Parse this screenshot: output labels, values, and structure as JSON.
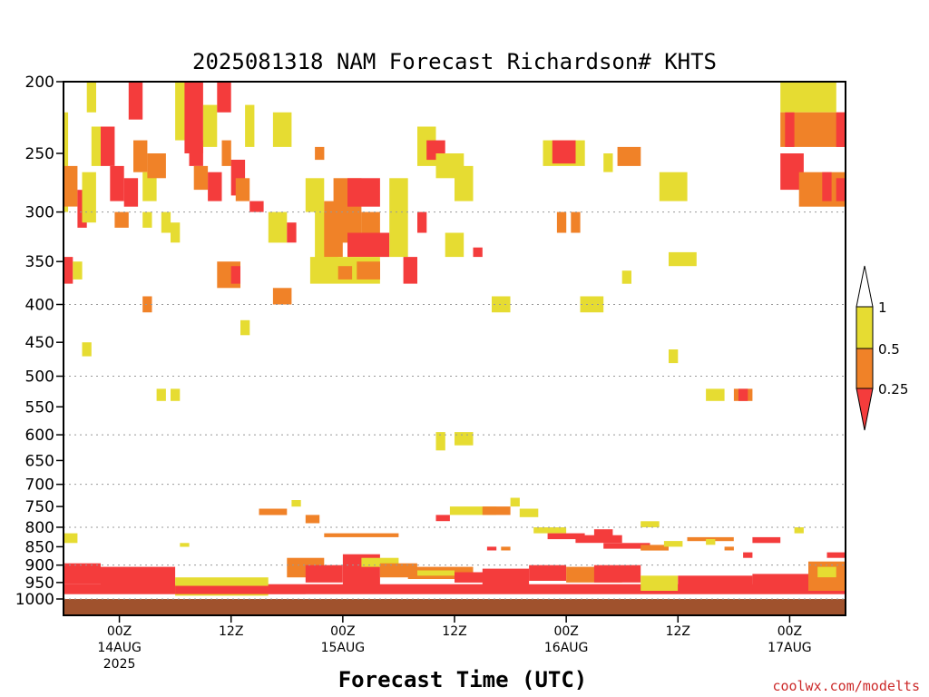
{
  "chart_data": {
    "type": "heatmap",
    "title": "2025081318 NAM Forecast Richardson# KHTS",
    "xlabel": "Forecast Time (UTC)",
    "ylabel": "",
    "credit": "coolwx.com/modelts",
    "y_scale": "pressure (inverted)",
    "ylim": [
      1000,
      200
    ],
    "y_ticks": [
      200,
      250,
      300,
      350,
      400,
      450,
      500,
      550,
      600,
      650,
      700,
      750,
      800,
      850,
      900,
      950,
      1000
    ],
    "y_gridlines": [
      300,
      400,
      500,
      600,
      700,
      800,
      900,
      1000
    ],
    "xlim_hours": [
      18,
      102
    ],
    "x_ticks": [
      {
        "hour": 24,
        "lines": [
          "00Z",
          "14AUG",
          "2025"
        ]
      },
      {
        "hour": 36,
        "lines": [
          "12Z"
        ]
      },
      {
        "hour": 48,
        "lines": [
          "00Z",
          "15AUG"
        ]
      },
      {
        "hour": 60,
        "lines": [
          "12Z"
        ]
      },
      {
        "hour": 72,
        "lines": [
          "00Z",
          "16AUG"
        ]
      },
      {
        "hour": 84,
        "lines": [
          "12Z"
        ]
      },
      {
        "hour": 96,
        "lines": [
          "00Z",
          "17AUG"
        ]
      }
    ],
    "legend": {
      "position": "right",
      "bins": [
        {
          "range": "<0.25",
          "color": "#f43c3c"
        },
        {
          "range": "0.25-0.5",
          "color": "#f08228"
        },
        {
          "range": "0.5-1",
          "color": "#e6dc32"
        },
        {
          "range": ">1",
          "color": "#ffffff"
        }
      ],
      "labels": [
        "1",
        "0.5",
        "0.25"
      ]
    },
    "colors": {
      "low": "#f43c3c",
      "mid": "#f08228",
      "high": "#e6dc32",
      "ground": "#a0522d"
    },
    "ground_level": 1000,
    "regions": [
      {
        "h0": 18.0,
        "h1": 18.5,
        "p0": 220,
        "p1": 300,
        "c": "high"
      },
      {
        "h0": 18.0,
        "h1": 19.5,
        "p0": 260,
        "p1": 295,
        "c": "mid"
      },
      {
        "h0": 19.5,
        "h1": 20.5,
        "p0": 280,
        "p1": 315,
        "c": "low"
      },
      {
        "h0": 20.0,
        "h1": 21.5,
        "p0": 265,
        "p1": 310,
        "c": "high"
      },
      {
        "h0": 20.5,
        "h1": 21.5,
        "p0": 200,
        "p1": 220,
        "c": "high"
      },
      {
        "h0": 21.0,
        "h1": 22.0,
        "p0": 230,
        "p1": 260,
        "c": "high"
      },
      {
        "h0": 22.0,
        "h1": 23.5,
        "p0": 230,
        "p1": 260,
        "c": "low"
      },
      {
        "h0": 23.0,
        "h1": 24.5,
        "p0": 260,
        "p1": 290,
        "c": "low"
      },
      {
        "h0": 23.5,
        "h1": 25.0,
        "p0": 300,
        "p1": 315,
        "c": "mid"
      },
      {
        "h0": 24.5,
        "h1": 26.0,
        "p0": 270,
        "p1": 295,
        "c": "low"
      },
      {
        "h0": 25.0,
        "h1": 26.5,
        "p0": 200,
        "p1": 225,
        "c": "low"
      },
      {
        "h0": 25.5,
        "h1": 27.0,
        "p0": 240,
        "p1": 265,
        "c": "mid"
      },
      {
        "h0": 26.5,
        "h1": 28.0,
        "p0": 265,
        "p1": 290,
        "c": "high"
      },
      {
        "h0": 27.0,
        "h1": 29.0,
        "p0": 250,
        "p1": 270,
        "c": "mid"
      },
      {
        "h0": 26.5,
        "h1": 27.5,
        "p0": 300,
        "p1": 315,
        "c": "high"
      },
      {
        "h0": 28.5,
        "h1": 29.5,
        "p0": 300,
        "p1": 320,
        "c": "high"
      },
      {
        "h0": 29.5,
        "h1": 30.5,
        "p0": 310,
        "p1": 330,
        "c": "high"
      },
      {
        "h0": 30.0,
        "h1": 31.5,
        "p0": 200,
        "p1": 240,
        "c": "high"
      },
      {
        "h0": 31.0,
        "h1": 33.0,
        "p0": 200,
        "p1": 250,
        "c": "low"
      },
      {
        "h0": 31.5,
        "h1": 33.0,
        "p0": 240,
        "p1": 260,
        "c": "low"
      },
      {
        "h0": 32.0,
        "h1": 33.5,
        "p0": 260,
        "p1": 280,
        "c": "mid"
      },
      {
        "h0": 33.0,
        "h1": 34.5,
        "p0": 215,
        "p1": 245,
        "c": "high"
      },
      {
        "h0": 33.5,
        "h1": 35.0,
        "p0": 265,
        "p1": 290,
        "c": "low"
      },
      {
        "h0": 34.5,
        "h1": 36.0,
        "p0": 200,
        "p1": 220,
        "c": "low"
      },
      {
        "h0": 35.0,
        "h1": 36.0,
        "p0": 240,
        "p1": 260,
        "c": "mid"
      },
      {
        "h0": 36.0,
        "h1": 37.5,
        "p0": 255,
        "p1": 285,
        "c": "low"
      },
      {
        "h0": 37.5,
        "h1": 38.5,
        "p0": 215,
        "p1": 245,
        "c": "high"
      },
      {
        "h0": 36.5,
        "h1": 38.0,
        "p0": 270,
        "p1": 290,
        "c": "mid"
      },
      {
        "h0": 38.0,
        "h1": 39.5,
        "p0": 290,
        "p1": 300,
        "c": "low"
      },
      {
        "h0": 40.0,
        "h1": 42.0,
        "p0": 300,
        "p1": 330,
        "c": "high"
      },
      {
        "h0": 42.0,
        "h1": 43.0,
        "p0": 310,
        "p1": 330,
        "c": "low"
      },
      {
        "h0": 40.5,
        "h1": 42.5,
        "p0": 220,
        "p1": 245,
        "c": "high"
      },
      {
        "h0": 34.5,
        "h1": 37.0,
        "p0": 350,
        "p1": 380,
        "c": "mid"
      },
      {
        "h0": 36.0,
        "h1": 37.0,
        "p0": 355,
        "p1": 375,
        "c": "low"
      },
      {
        "h0": 40.5,
        "h1": 42.5,
        "p0": 380,
        "p1": 400,
        "c": "mid"
      },
      {
        "h0": 44.0,
        "h1": 46.0,
        "p0": 270,
        "p1": 300,
        "c": "high"
      },
      {
        "h0": 45.0,
        "h1": 47.5,
        "p0": 300,
        "p1": 360,
        "c": "high"
      },
      {
        "h0": 46.0,
        "h1": 48.0,
        "p0": 290,
        "p1": 345,
        "c": "mid"
      },
      {
        "h0": 47.0,
        "h1": 50.0,
        "p0": 270,
        "p1": 330,
        "c": "mid"
      },
      {
        "h0": 48.5,
        "h1": 52.0,
        "p0": 270,
        "p1": 295,
        "c": "low"
      },
      {
        "h0": 48.5,
        "h1": 53.0,
        "p0": 320,
        "p1": 345,
        "c": "low"
      },
      {
        "h0": 50.0,
        "h1": 52.0,
        "p0": 300,
        "p1": 320,
        "c": "mid"
      },
      {
        "h0": 44.5,
        "h1": 52.0,
        "p0": 345,
        "p1": 375,
        "c": "high"
      },
      {
        "h0": 47.5,
        "h1": 49.0,
        "p0": 355,
        "p1": 370,
        "c": "mid"
      },
      {
        "h0": 49.5,
        "h1": 52.0,
        "p0": 350,
        "p1": 370,
        "c": "mid"
      },
      {
        "h0": 53.0,
        "h1": 55.0,
        "p0": 270,
        "p1": 345,
        "c": "high"
      },
      {
        "h0": 54.5,
        "h1": 56.0,
        "p0": 345,
        "p1": 375,
        "c": "low"
      },
      {
        "h0": 56.0,
        "h1": 57.0,
        "p0": 300,
        "p1": 320,
        "c": "low"
      },
      {
        "h0": 56.0,
        "h1": 58.0,
        "p0": 230,
        "p1": 260,
        "c": "high"
      },
      {
        "h0": 57.0,
        "h1": 59.0,
        "p0": 240,
        "p1": 255,
        "c": "low"
      },
      {
        "h0": 58.0,
        "h1": 61.0,
        "p0": 250,
        "p1": 270,
        "c": "high"
      },
      {
        "h0": 60.0,
        "h1": 62.0,
        "p0": 260,
        "p1": 290,
        "c": "high"
      },
      {
        "h0": 59.0,
        "h1": 61.0,
        "p0": 320,
        "p1": 345,
        "c": "high"
      },
      {
        "h0": 62.0,
        "h1": 63.0,
        "p0": 335,
        "p1": 345,
        "c": "low"
      },
      {
        "h0": 45.0,
        "h1": 46.0,
        "p0": 245,
        "p1": 255,
        "c": "mid"
      },
      {
        "h0": 64.0,
        "h1": 66.0,
        "p0": 390,
        "p1": 410,
        "c": "high"
      },
      {
        "h0": 69.5,
        "h1": 74.0,
        "p0": 240,
        "p1": 260,
        "c": "high"
      },
      {
        "h0": 70.5,
        "h1": 73.0,
        "p0": 240,
        "p1": 258,
        "c": "low"
      },
      {
        "h0": 71.0,
        "h1": 72.0,
        "p0": 300,
        "p1": 320,
        "c": "mid"
      },
      {
        "h0": 72.5,
        "h1": 73.5,
        "p0": 300,
        "p1": 320,
        "c": "mid"
      },
      {
        "h0": 73.5,
        "h1": 76.0,
        "p0": 390,
        "p1": 410,
        "c": "high"
      },
      {
        "h0": 76.0,
        "h1": 77.0,
        "p0": 250,
        "p1": 265,
        "c": "high"
      },
      {
        "h0": 77.5,
        "h1": 80.0,
        "p0": 245,
        "p1": 260,
        "c": "mid"
      },
      {
        "h0": 78.0,
        "h1": 79.0,
        "p0": 360,
        "p1": 375,
        "c": "high"
      },
      {
        "h0": 82.0,
        "h1": 85.0,
        "p0": 265,
        "p1": 290,
        "c": "high"
      },
      {
        "h0": 83.0,
        "h1": 86.0,
        "p0": 340,
        "p1": 355,
        "c": "high"
      },
      {
        "h0": 83.0,
        "h1": 84.0,
        "p0": 460,
        "p1": 480,
        "c": "high"
      },
      {
        "h0": 87.0,
        "h1": 89.0,
        "p0": 520,
        "p1": 540,
        "c": "high"
      },
      {
        "h0": 90.0,
        "h1": 92.0,
        "p0": 520,
        "p1": 540,
        "c": "mid"
      },
      {
        "h0": 90.5,
        "h1": 91.5,
        "p0": 520,
        "p1": 540,
        "c": "low"
      },
      {
        "h0": 95.0,
        "h1": 101.0,
        "p0": 200,
        "p1": 220,
        "c": "high"
      },
      {
        "h0": 95.0,
        "h1": 102.0,
        "p0": 220,
        "p1": 245,
        "c": "mid"
      },
      {
        "h0": 95.5,
        "h1": 96.5,
        "p0": 220,
        "p1": 245,
        "c": "low"
      },
      {
        "h0": 101.0,
        "h1": 102.0,
        "p0": 220,
        "p1": 245,
        "c": "low"
      },
      {
        "h0": 95.0,
        "h1": 97.5,
        "p0": 250,
        "p1": 280,
        "c": "low"
      },
      {
        "h0": 97.0,
        "h1": 102.0,
        "p0": 265,
        "p1": 295,
        "c": "mid"
      },
      {
        "h0": 99.5,
        "h1": 100.5,
        "p0": 265,
        "p1": 290,
        "c": "low"
      },
      {
        "h0": 101.0,
        "h1": 102.0,
        "p0": 270,
        "p1": 290,
        "c": "low"
      },
      {
        "h0": 18.0,
        "h1": 19.0,
        "p0": 345,
        "p1": 375,
        "c": "low"
      },
      {
        "h0": 19.0,
        "h1": 20.0,
        "p0": 350,
        "p1": 370,
        "c": "high"
      },
      {
        "h0": 20.0,
        "h1": 21.0,
        "p0": 450,
        "p1": 470,
        "c": "high"
      },
      {
        "h0": 26.5,
        "h1": 27.5,
        "p0": 390,
        "p1": 410,
        "c": "mid"
      },
      {
        "h0": 28.0,
        "h1": 29.0,
        "p0": 520,
        "p1": 540,
        "c": "high"
      },
      {
        "h0": 29.5,
        "h1": 30.5,
        "p0": 520,
        "p1": 540,
        "c": "high"
      },
      {
        "h0": 37.0,
        "h1": 38.0,
        "p0": 420,
        "p1": 440,
        "c": "high"
      },
      {
        "h0": 18.0,
        "h1": 19.5,
        "p0": 815,
        "p1": 840,
        "c": "high"
      },
      {
        "h0": 30.5,
        "h1": 31.5,
        "p0": 840,
        "p1": 850,
        "c": "high"
      },
      {
        "h0": 39.0,
        "h1": 42.0,
        "p0": 755,
        "p1": 770,
        "c": "mid"
      },
      {
        "h0": 42.5,
        "h1": 43.5,
        "p0": 735,
        "p1": 750,
        "c": "high"
      },
      {
        "h0": 44.0,
        "h1": 45.5,
        "p0": 770,
        "p1": 790,
        "c": "mid"
      },
      {
        "h0": 46.0,
        "h1": 54.0,
        "p0": 815,
        "p1": 825,
        "c": "mid"
      },
      {
        "h0": 58.0,
        "h1": 59.0,
        "p0": 595,
        "p1": 630,
        "c": "high"
      },
      {
        "h0": 60.0,
        "h1": 62.0,
        "p0": 595,
        "p1": 620,
        "c": "high"
      },
      {
        "h0": 58.0,
        "h1": 59.5,
        "p0": 770,
        "p1": 785,
        "c": "low"
      },
      {
        "h0": 59.5,
        "h1": 64.5,
        "p0": 750,
        "p1": 770,
        "c": "high"
      },
      {
        "h0": 63.0,
        "h1": 66.0,
        "p0": 750,
        "p1": 770,
        "c": "mid"
      },
      {
        "h0": 66.0,
        "h1": 67.0,
        "p0": 730,
        "p1": 750,
        "c": "high"
      },
      {
        "h0": 67.0,
        "h1": 69.0,
        "p0": 755,
        "p1": 775,
        "c": "high"
      },
      {
        "h0": 63.5,
        "h1": 64.5,
        "p0": 850,
        "p1": 860,
        "c": "low"
      },
      {
        "h0": 65.0,
        "h1": 66.0,
        "p0": 850,
        "p1": 860,
        "c": "mid"
      },
      {
        "h0": 68.5,
        "h1": 72.0,
        "p0": 800,
        "p1": 815,
        "c": "high"
      },
      {
        "h0": 70.0,
        "h1": 74.0,
        "p0": 815,
        "p1": 830,
        "c": "low"
      },
      {
        "h0": 73.0,
        "h1": 78.0,
        "p0": 820,
        "p1": 840,
        "c": "low"
      },
      {
        "h0": 75.0,
        "h1": 77.0,
        "p0": 805,
        "p1": 825,
        "c": "low"
      },
      {
        "h0": 76.0,
        "h1": 81.0,
        "p0": 840,
        "p1": 855,
        "c": "low"
      },
      {
        "h0": 80.0,
        "h1": 82.0,
        "p0": 785,
        "p1": 800,
        "c": "high"
      },
      {
        "h0": 80.0,
        "h1": 83.0,
        "p0": 845,
        "p1": 860,
        "c": "mid"
      },
      {
        "h0": 82.5,
        "h1": 84.5,
        "p0": 835,
        "p1": 850,
        "c": "high"
      },
      {
        "h0": 85.0,
        "h1": 90.0,
        "p0": 825,
        "p1": 835,
        "c": "mid"
      },
      {
        "h0": 87.0,
        "h1": 88.0,
        "p0": 830,
        "p1": 845,
        "c": "high"
      },
      {
        "h0": 89.0,
        "h1": 90.0,
        "p0": 850,
        "p1": 860,
        "c": "mid"
      },
      {
        "h0": 92.0,
        "h1": 95.0,
        "p0": 825,
        "p1": 840,
        "c": "low"
      },
      {
        "h0": 91.0,
        "h1": 92.0,
        "p0": 865,
        "p1": 880,
        "c": "low"
      },
      {
        "h0": 96.5,
        "h1": 97.5,
        "p0": 800,
        "p1": 815,
        "c": "high"
      },
      {
        "h0": 100.0,
        "h1": 102.0,
        "p0": 865,
        "p1": 880,
        "c": "low"
      },
      {
        "h0": 18.0,
        "h1": 102.0,
        "p0": 955,
        "p1": 985,
        "c": "low"
      },
      {
        "h0": 18.0,
        "h1": 22.0,
        "p0": 895,
        "p1": 955,
        "c": "low"
      },
      {
        "h0": 22.0,
        "h1": 30.0,
        "p0": 905,
        "p1": 960,
        "c": "low"
      },
      {
        "h0": 30.0,
        "h1": 40.0,
        "p0": 935,
        "p1": 990,
        "c": "high"
      },
      {
        "h0": 30.0,
        "h1": 44.0,
        "p0": 960,
        "p1": 985,
        "c": "low"
      },
      {
        "h0": 42.0,
        "h1": 46.0,
        "p0": 880,
        "p1": 935,
        "c": "mid"
      },
      {
        "h0": 44.0,
        "h1": 48.0,
        "p0": 900,
        "p1": 950,
        "c": "low"
      },
      {
        "h0": 48.0,
        "h1": 52.0,
        "p0": 870,
        "p1": 960,
        "c": "low"
      },
      {
        "h0": 50.0,
        "h1": 54.0,
        "p0": 880,
        "p1": 905,
        "c": "high"
      },
      {
        "h0": 52.0,
        "h1": 56.0,
        "p0": 895,
        "p1": 935,
        "c": "mid"
      },
      {
        "h0": 55.0,
        "h1": 62.0,
        "p0": 905,
        "p1": 940,
        "c": "mid"
      },
      {
        "h0": 56.0,
        "h1": 60.0,
        "p0": 915,
        "p1": 930,
        "c": "high"
      },
      {
        "h0": 60.0,
        "h1": 64.0,
        "p0": 920,
        "p1": 950,
        "c": "low"
      },
      {
        "h0": 63.0,
        "h1": 68.0,
        "p0": 910,
        "p1": 960,
        "c": "low"
      },
      {
        "h0": 68.0,
        "h1": 72.0,
        "p0": 900,
        "p1": 945,
        "c": "low"
      },
      {
        "h0": 72.0,
        "h1": 78.0,
        "p0": 905,
        "p1": 950,
        "c": "mid"
      },
      {
        "h0": 75.0,
        "h1": 80.0,
        "p0": 900,
        "p1": 950,
        "c": "low"
      },
      {
        "h0": 80.0,
        "h1": 84.0,
        "p0": 930,
        "p1": 975,
        "c": "high"
      },
      {
        "h0": 84.0,
        "h1": 92.0,
        "p0": 930,
        "p1": 975,
        "c": "low"
      },
      {
        "h0": 92.0,
        "h1": 98.0,
        "p0": 925,
        "p1": 970,
        "c": "low"
      },
      {
        "h0": 98.0,
        "h1": 102.0,
        "p0": 890,
        "p1": 975,
        "c": "mid"
      },
      {
        "h0": 99.0,
        "h1": 101.0,
        "p0": 905,
        "p1": 935,
        "c": "high"
      }
    ]
  }
}
